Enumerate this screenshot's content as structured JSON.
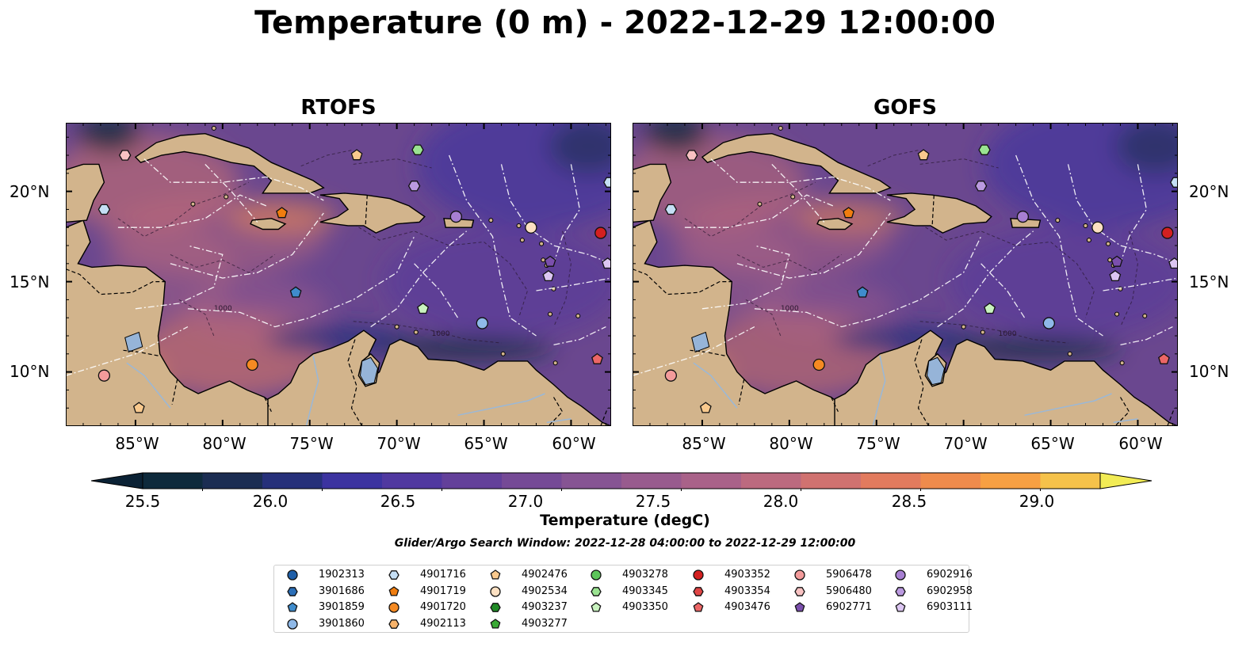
{
  "title": "Temperature (0 m) - 2022-12-29 12:00:00",
  "panels": [
    {
      "title": "RTOFS"
    },
    {
      "title": "GOFS"
    }
  ],
  "map": {
    "lon_range": [
      -89.0,
      -57.7
    ],
    "lat_range": [
      7.0,
      23.8
    ],
    "y_ticks": [
      "20°N",
      "15°N",
      "10°N"
    ],
    "y_tick_values": [
      20,
      15,
      10
    ],
    "x_ticks": [
      "85°W",
      "80°W",
      "75°W",
      "70°W",
      "65°W",
      "60°W"
    ],
    "x_tick_values": [
      -85,
      -80,
      -75,
      -70,
      -65,
      -60
    ],
    "land_color": "#d2b48c",
    "ocean_base_color": "#6a478f",
    "contour_labels": [
      "1000",
      "100"
    ]
  },
  "colorbar": {
    "label": "Temperature (degC)",
    "min": 25.25,
    "max": 29.25,
    "step": 0.25,
    "ticks": [
      "25.5",
      "26.0",
      "26.5",
      "27.0",
      "27.5",
      "28.0",
      "28.5",
      "29.0"
    ],
    "tick_values": [
      25.5,
      26.0,
      26.5,
      27.0,
      27.5,
      28.0,
      28.5,
      29.0
    ],
    "extend": "both",
    "colors": [
      "#0e2a3c",
      "#1b2d52",
      "#26307a",
      "#3c33a0",
      "#5038a0",
      "#63409a",
      "#754a96",
      "#865493",
      "#985b8e",
      "#a96289",
      "#bc6a7f",
      "#d07270",
      "#e27b5e",
      "#ef8b4c",
      "#f7a043",
      "#f5c24a"
    ],
    "under_color": "#0b2235",
    "over_color": "#f2ec55"
  },
  "search_window": "Glider/Argo Search Window: 2022-12-28 04:00:00 to 2022-12-29 12:00:00",
  "legend": {
    "columns": [
      [
        {
          "id": "1902313",
          "marker": "circle",
          "color": "#1f5fa8"
        },
        {
          "id": "3901686",
          "marker": "hexagon",
          "color": "#2b6fb8"
        },
        {
          "id": "3901859",
          "marker": "pentagon",
          "color": "#3f8ccc"
        },
        {
          "id": "3901860",
          "marker": "circle",
          "color": "#8fb9e8"
        }
      ],
      [
        {
          "id": "4901716",
          "marker": "hexagon",
          "color": "#c5dff5"
        },
        {
          "id": "4901719",
          "marker": "pentagon",
          "color": "#f07d0f"
        },
        {
          "id": "4901720",
          "marker": "circle",
          "color": "#f58a22"
        },
        {
          "id": "4902113",
          "marker": "hexagon",
          "color": "#f8b36a"
        }
      ],
      [
        {
          "id": "4902476",
          "marker": "pentagon",
          "color": "#f9c98d"
        },
        {
          "id": "4902534",
          "marker": "circle",
          "color": "#fce0c2"
        },
        {
          "id": "4903237",
          "marker": "hexagon",
          "color": "#208a26"
        },
        {
          "id": "4903277",
          "marker": "pentagon",
          "color": "#3aaa35"
        }
      ],
      [
        {
          "id": "4903278",
          "marker": "circle",
          "color": "#5cc55a"
        },
        {
          "id": "4903345",
          "marker": "hexagon",
          "color": "#9ae391"
        },
        {
          "id": "4903350",
          "marker": "pentagon",
          "color": "#c9f3bf"
        }
      ],
      [
        {
          "id": "4903352",
          "marker": "circle",
          "color": "#d42020"
        },
        {
          "id": "4903354",
          "marker": "hexagon",
          "color": "#e04545"
        },
        {
          "id": "4903476",
          "marker": "pentagon",
          "color": "#ec6666"
        }
      ],
      [
        {
          "id": "5906478",
          "marker": "circle",
          "color": "#f39b9b"
        },
        {
          "id": "5906480",
          "marker": "hexagon",
          "color": "#f8c2c2"
        },
        {
          "id": "6902771",
          "marker": "pentagon",
          "color": "#7b4fad"
        }
      ],
      [
        {
          "id": "6902916",
          "marker": "circle",
          "color": "#a77fd2"
        },
        {
          "id": "6902958",
          "marker": "hexagon",
          "color": "#bb9ae0"
        },
        {
          "id": "6903111",
          "marker": "pentagon",
          "color": "#dcc6f2"
        }
      ]
    ]
  },
  "floats": [
    {
      "id": "4903352",
      "lon": -58.3,
      "lat": 17.7
    },
    {
      "id": "4903476",
      "lon": -58.5,
      "lat": 10.7
    },
    {
      "id": "6902916",
      "lon": -66.6,
      "lat": 18.6
    },
    {
      "id": "6902958",
      "lon": -69.0,
      "lat": 20.3
    },
    {
      "id": "4903345",
      "lon": -68.8,
      "lat": 22.3
    },
    {
      "id": "4902476",
      "lon": -72.3,
      "lat": 22.0
    },
    {
      "id": "4902534",
      "lon": -62.3,
      "lat": 18.0
    },
    {
      "id": "4901716",
      "lon": -86.8,
      "lat": 19.0
    },
    {
      "id": "4901719",
      "lon": -76.6,
      "lat": 18.8
    },
    {
      "id": "3901859",
      "lon": -75.8,
      "lat": 14.4
    },
    {
      "id": "4903350",
      "lon": -68.5,
      "lat": 13.5
    },
    {
      "id": "3901860",
      "lon": -65.1,
      "lat": 12.7
    },
    {
      "id": "4901720",
      "lon": -78.3,
      "lat": 10.4
    },
    {
      "id": "5906478",
      "lon": -86.8,
      "lat": 9.8
    },
    {
      "id": "4902476",
      "lon": -84.8,
      "lat": 8.0
    },
    {
      "id": "5906480",
      "lon": -85.6,
      "lat": 22.0
    },
    {
      "id": "6903111",
      "lon": -61.3,
      "lat": 15.3
    },
    {
      "id": "6902771",
      "lon": -61.2,
      "lat": 16.1
    },
    {
      "id": "4901716",
      "lon": -57.8,
      "lat": 20.5
    },
    {
      "id": "6903111",
      "lon": -57.9,
      "lat": 16.0
    }
  ]
}
